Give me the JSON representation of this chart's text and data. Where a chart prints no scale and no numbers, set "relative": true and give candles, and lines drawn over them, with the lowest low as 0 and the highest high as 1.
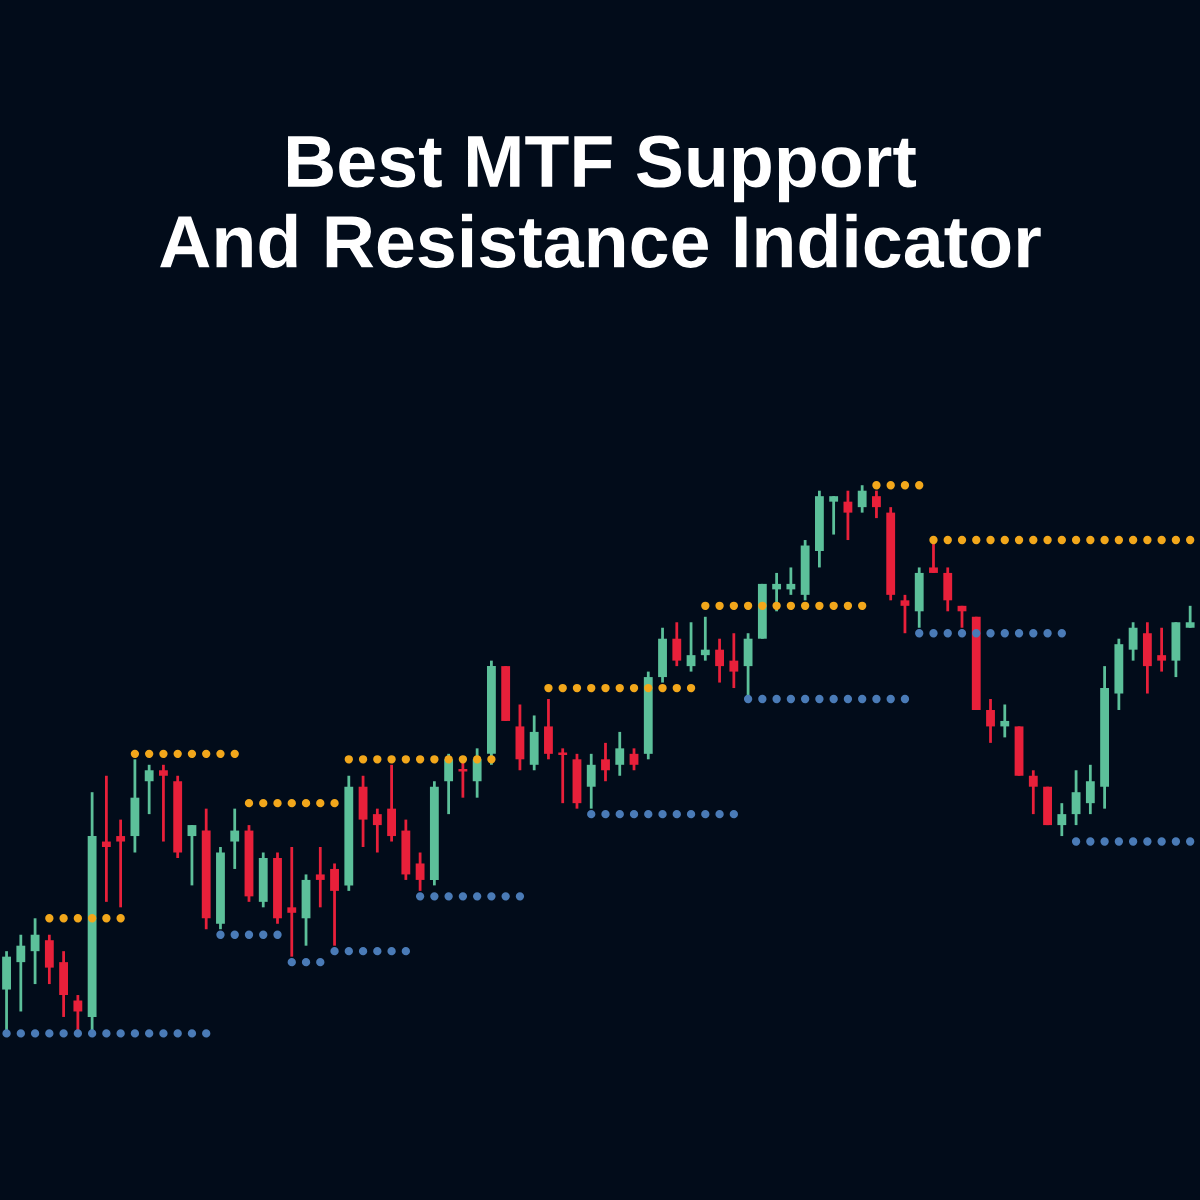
{
  "chart_data": {
    "type": "candlestick",
    "title": "Best MTF Support\nAnd Resistance Indicator",
    "relative": true,
    "tick_labels": false,
    "marker": "circle",
    "categories": [
      null,
      null,
      null,
      null,
      null,
      null,
      null,
      null,
      null,
      null,
      null,
      null,
      null,
      null,
      null,
      null,
      null,
      null,
      null,
      null,
      null,
      null,
      null,
      null,
      null,
      null,
      null,
      null,
      null,
      null,
      null,
      null,
      null,
      null,
      null,
      null,
      null,
      null,
      null,
      null,
      null,
      null,
      null,
      null,
      null,
      null,
      null,
      null,
      null,
      null,
      null,
      null,
      null,
      null,
      null,
      null,
      null,
      null,
      null,
      null,
      null,
      null,
      null,
      null,
      null,
      null,
      null,
      null,
      null,
      null,
      null,
      null,
      null,
      null,
      null,
      null,
      null,
      null,
      null,
      null,
      null,
      null,
      null,
      null
    ],
    "ohlc": [
      [
        0.08,
        0.15,
        0.0,
        0.14
      ],
      [
        0.13,
        0.18,
        0.04,
        0.16
      ],
      [
        0.15,
        0.21,
        0.09,
        0.18
      ],
      [
        0.17,
        0.18,
        0.09,
        0.12
      ],
      [
        0.13,
        0.15,
        0.03,
        0.07
      ],
      [
        0.06,
        0.07,
        0.0,
        0.04
      ],
      [
        0.03,
        0.44,
        0.0,
        0.36
      ],
      [
        0.35,
        0.47,
        0.24,
        0.34
      ],
      [
        0.36,
        0.39,
        0.23,
        0.35
      ],
      [
        0.36,
        0.5,
        0.33,
        0.43
      ],
      [
        0.46,
        0.49,
        0.4,
        0.48
      ],
      [
        0.48,
        0.49,
        0.35,
        0.47
      ],
      [
        0.46,
        0.47,
        0.32,
        0.33
      ],
      [
        0.36,
        0.38,
        0.27,
        0.38
      ],
      [
        0.37,
        0.41,
        0.19,
        0.21
      ],
      [
        0.2,
        0.34,
        0.19,
        0.33
      ],
      [
        0.35,
        0.41,
        0.3,
        0.37
      ],
      [
        0.37,
        0.38,
        0.24,
        0.25
      ],
      [
        0.24,
        0.33,
        0.23,
        0.32
      ],
      [
        0.32,
        0.33,
        0.2,
        0.21
      ],
      [
        0.23,
        0.34,
        0.14,
        0.22
      ],
      [
        0.21,
        0.29,
        0.16,
        0.28
      ],
      [
        0.29,
        0.34,
        0.23,
        0.28
      ],
      [
        0.3,
        0.31,
        0.16,
        0.26
      ],
      [
        0.27,
        0.47,
        0.26,
        0.45
      ],
      [
        0.45,
        0.47,
        0.34,
        0.39
      ],
      [
        0.4,
        0.41,
        0.33,
        0.38
      ],
      [
        0.41,
        0.49,
        0.35,
        0.36
      ],
      [
        0.37,
        0.39,
        0.28,
        0.29
      ],
      [
        0.31,
        0.33,
        0.26,
        0.28
      ],
      [
        0.28,
        0.46,
        0.27,
        0.45
      ],
      [
        0.46,
        0.51,
        0.4,
        0.5
      ],
      [
        0.48,
        0.5,
        0.43,
        0.48
      ],
      [
        0.46,
        0.52,
        0.43,
        0.5
      ],
      [
        0.51,
        0.68,
        0.49,
        0.67
      ],
      [
        0.67,
        0.67,
        0.57,
        0.57
      ],
      [
        0.56,
        0.6,
        0.48,
        0.5
      ],
      [
        0.49,
        0.58,
        0.48,
        0.55
      ],
      [
        0.56,
        0.61,
        0.5,
        0.51
      ],
      [
        0.51,
        0.52,
        0.42,
        0.51
      ],
      [
        0.5,
        0.51,
        0.41,
        0.42
      ],
      [
        0.45,
        0.51,
        0.41,
        0.49
      ],
      [
        0.5,
        0.53,
        0.46,
        0.48
      ],
      [
        0.49,
        0.55,
        0.47,
        0.52
      ],
      [
        0.51,
        0.52,
        0.48,
        0.49
      ],
      [
        0.51,
        0.66,
        0.5,
        0.65
      ],
      [
        0.65,
        0.74,
        0.64,
        0.72
      ],
      [
        0.72,
        0.75,
        0.67,
        0.68
      ],
      [
        0.67,
        0.75,
        0.66,
        0.69
      ],
      [
        0.69,
        0.76,
        0.68,
        0.7
      ],
      [
        0.7,
        0.72,
        0.64,
        0.67
      ],
      [
        0.68,
        0.73,
        0.63,
        0.66
      ],
      [
        0.67,
        0.73,
        0.61,
        0.72
      ],
      [
        0.72,
        0.82,
        0.72,
        0.82
      ],
      [
        0.81,
        0.84,
        0.77,
        0.82
      ],
      [
        0.81,
        0.85,
        0.8,
        0.82
      ],
      [
        0.8,
        0.9,
        0.79,
        0.89
      ],
      [
        0.88,
        0.99,
        0.85,
        0.98
      ],
      [
        0.97,
        0.98,
        0.91,
        0.98
      ],
      [
        0.97,
        0.99,
        0.9,
        0.95
      ],
      [
        0.96,
        1.0,
        0.95,
        0.99
      ],
      [
        0.98,
        0.99,
        0.94,
        0.96
      ],
      [
        0.95,
        0.96,
        0.79,
        0.8
      ],
      [
        0.79,
        0.8,
        0.73,
        0.78
      ],
      [
        0.77,
        0.85,
        0.74,
        0.84
      ],
      [
        0.85,
        0.9,
        0.84,
        0.84
      ],
      [
        0.84,
        0.85,
        0.77,
        0.79
      ],
      [
        0.78,
        0.78,
        0.74,
        0.77
      ],
      [
        0.76,
        0.76,
        0.59,
        0.59
      ],
      [
        0.59,
        0.61,
        0.53,
        0.56
      ],
      [
        0.56,
        0.6,
        0.54,
        0.57
      ],
      [
        0.56,
        0.56,
        0.47,
        0.47
      ],
      [
        0.47,
        0.48,
        0.4,
        0.45
      ],
      [
        0.45,
        0.45,
        0.38,
        0.38
      ],
      [
        0.38,
        0.42,
        0.36,
        0.4
      ],
      [
        0.4,
        0.48,
        0.38,
        0.44
      ],
      [
        0.42,
        0.49,
        0.4,
        0.46
      ],
      [
        0.45,
        0.67,
        0.41,
        0.63
      ],
      [
        0.62,
        0.72,
        0.59,
        0.71
      ],
      [
        0.7,
        0.75,
        0.68,
        0.74
      ],
      [
        0.73,
        0.75,
        0.62,
        0.67
      ],
      [
        0.69,
        0.74,
        0.66,
        0.68
      ],
      [
        0.68,
        0.75,
        0.65,
        0.75
      ],
      [
        0.74,
        0.78,
        0.74,
        0.75
      ]
    ],
    "colors": [
      "#5cc09a",
      "#5cc09a",
      "#5cc09a",
      "#e8203a",
      "#e8203a",
      "#e8203a",
      "#5cc09a",
      "#e8203a",
      "#e8203a",
      "#5cc09a",
      "#5cc09a",
      "#e8203a",
      "#e8203a",
      "#5cc09a",
      "#e8203a",
      "#5cc09a",
      "#5cc09a",
      "#e8203a",
      "#5cc09a",
      "#e8203a",
      "#e8203a",
      "#5cc09a",
      "#e8203a",
      "#e8203a",
      "#5cc09a",
      "#e8203a",
      "#e8203a",
      "#e8203a",
      "#e8203a",
      "#e8203a",
      "#5cc09a",
      "#5cc09a",
      "#e8203a",
      "#5cc09a",
      "#5cc09a",
      "#e8203a",
      "#e8203a",
      "#5cc09a",
      "#e8203a",
      "#e8203a",
      "#e8203a",
      "#5cc09a",
      "#e8203a",
      "#5cc09a",
      "#e8203a",
      "#5cc09a",
      "#5cc09a",
      "#e8203a",
      "#5cc09a",
      "#5cc09a",
      "#e8203a",
      "#e8203a",
      "#5cc09a",
      "#5cc09a",
      "#5cc09a",
      "#5cc09a",
      "#5cc09a",
      "#5cc09a",
      "#5cc09a",
      "#e8203a",
      "#5cc09a",
      "#e8203a",
      "#e8203a",
      "#e8203a",
      "#5cc09a",
      "#e8203a",
      "#e8203a",
      "#e8203a",
      "#e8203a",
      "#e8203a",
      "#5cc09a",
      "#e8203a",
      "#e8203a",
      "#e8203a",
      "#5cc09a",
      "#5cc09a",
      "#5cc09a",
      "#5cc09a",
      "#5cc09a",
      "#5cc09a",
      "#e8203a",
      "#e8203a",
      "#5cc09a",
      "#5cc09a"
    ],
    "series": [
      {
        "type": "scatter",
        "color": "#f2a71b",
        "values": [
          null,
          null,
          null,
          0.21,
          0.21,
          0.21,
          0.21,
          0.21,
          0.21,
          0.51,
          0.51,
          0.51,
          0.51,
          0.51,
          0.51,
          0.51,
          0.51,
          0.42,
          0.42,
          0.42,
          0.42,
          0.42,
          0.42,
          0.42,
          0.5,
          0.5,
          0.5,
          0.5,
          0.5,
          0.5,
          0.5,
          0.5,
          0.5,
          0.5,
          0.5,
          null,
          null,
          null,
          0.63,
          0.63,
          0.63,
          0.63,
          0.63,
          0.63,
          0.63,
          0.63,
          0.63,
          0.63,
          0.63,
          0.78,
          0.78,
          0.78,
          0.78,
          0.78,
          0.78,
          0.78,
          0.78,
          0.78,
          0.78,
          0.78,
          0.78,
          1.0,
          1.0,
          1.0,
          1.0,
          0.9,
          0.9,
          0.9,
          0.9,
          0.9,
          0.9,
          0.9,
          0.9,
          0.9,
          0.9,
          0.9,
          0.9,
          0.9,
          0.9,
          0.9,
          0.9,
          0.9,
          0.9,
          0.9
        ]
      },
      {
        "type": "scatter",
        "color": "#4a7bb7",
        "values": [
          0.0,
          0.0,
          0.0,
          0.0,
          0.0,
          0.0,
          0.0,
          0.0,
          0.0,
          0.0,
          0.0,
          0.0,
          0.0,
          0.0,
          0.0,
          0.18,
          0.18,
          0.18,
          0.18,
          0.18,
          0.13,
          0.13,
          0.13,
          0.15,
          0.15,
          0.15,
          0.15,
          0.15,
          0.15,
          0.25,
          0.25,
          0.25,
          0.25,
          0.25,
          0.25,
          0.25,
          0.25,
          null,
          null,
          null,
          null,
          0.4,
          0.4,
          0.4,
          0.4,
          0.4,
          0.4,
          0.4,
          0.4,
          0.4,
          0.4,
          0.4,
          0.61,
          0.61,
          0.61,
          0.61,
          0.61,
          0.61,
          0.61,
          0.61,
          0.61,
          0.61,
          0.61,
          0.61,
          0.73,
          0.73,
          0.73,
          0.73,
          0.73,
          0.73,
          0.73,
          0.73,
          0.73,
          0.73,
          0.73,
          0.35,
          0.35,
          0.35,
          0.35,
          0.35,
          0.35,
          0.35,
          0.35,
          0.35
        ]
      }
    ]
  }
}
